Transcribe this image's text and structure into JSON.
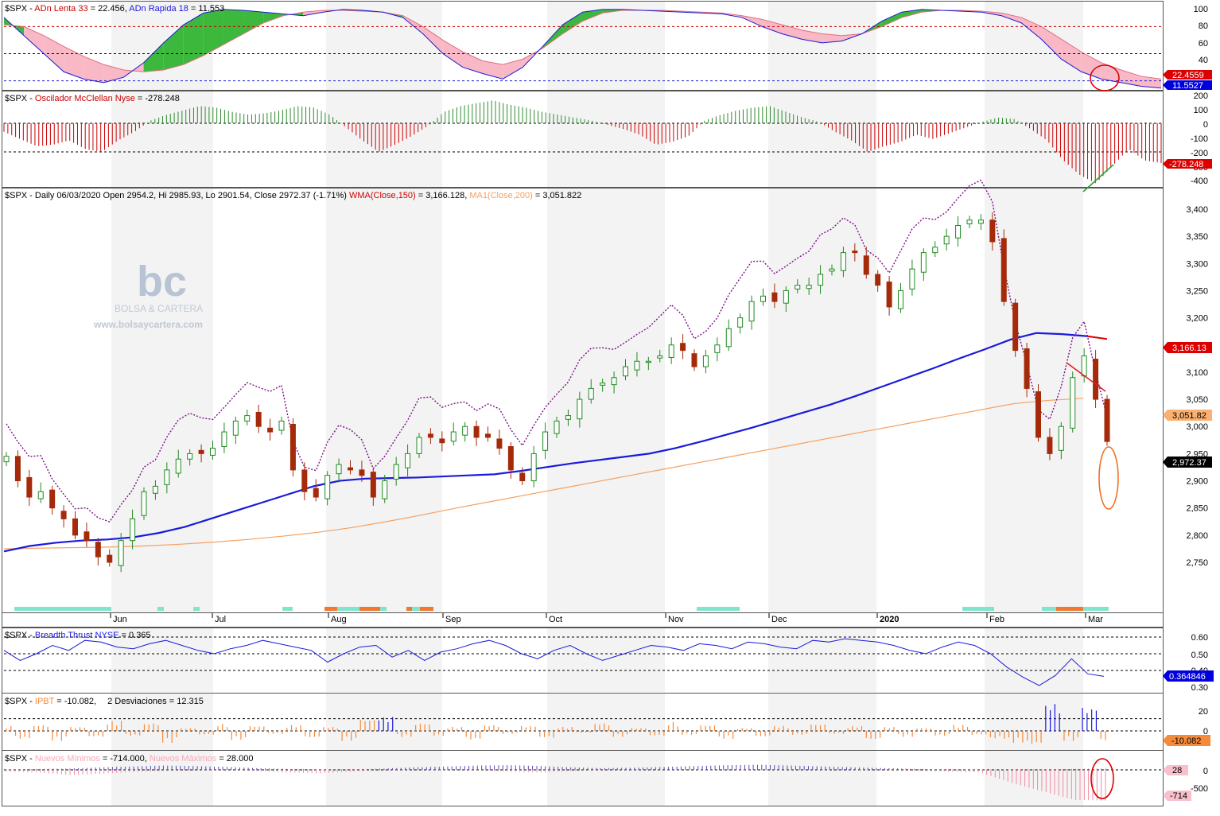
{
  "colors": {
    "bg": "#ffffff",
    "month_shade": "#eeeeee",
    "grid": "#e0e0e0",
    "blue": "#1a1adb",
    "red": "#cc0000",
    "green": "#2e8b2e",
    "orange": "#f58a3a",
    "pink": "#f9b8c6",
    "purple": "#7b0f86",
    "teal": "#7fe5cc",
    "candle_up": "#1f8a1f",
    "candle_down": "#a52a0a"
  },
  "panels": {
    "p1": {
      "title_prefix": "$SPX - ",
      "ind1": "ADn Lenta 33",
      "ind1_val": " = 22.456, ",
      "ind2": "ADn Rapida 18",
      "ind2_val": " = 11.553",
      "ticks": [
        "100",
        "80",
        "60",
        "40",
        "20"
      ],
      "tag1": "22.4559",
      "tag2": "11.5527"
    },
    "p2": {
      "title_prefix": "$SPX - ",
      "ind": "Oscilador McClellan Nyse",
      "ind_val": " = -278.248",
      "ticks": [
        "200",
        "100",
        "0",
        "-100",
        "-200",
        "-300",
        "-400"
      ],
      "tag": "-278.248"
    },
    "p3": {
      "title_prefix": "$SPX - Daily 06/03/2020 Open 2954.2, Hi 2985.93, Lo 2901.54, Close 2972.37 (-1.71%) ",
      "wma": "WMA(Close,150)",
      "wma_val": " = 3,166.128, ",
      "ma": "MA1(Close,200)",
      "ma_val": " = 3,051.822",
      "ticks": [
        "3,400",
        "3,350",
        "3,300",
        "3,250",
        "3,200",
        "3,150",
        "3,100",
        "3,050",
        "3,000",
        "2,950",
        "2,900",
        "2,850",
        "2,800",
        "2,750"
      ],
      "tag_wma": "3,166.13",
      "tag_ma": "3,051.82",
      "tag_close": "2,972.37",
      "months": [
        "Jun",
        "Jul",
        "Aug",
        "Sep",
        "Oct",
        "Nov",
        "Dec",
        "2020",
        "Feb",
        "Mar"
      ]
    },
    "p4": {
      "title_prefix": "$SPX - ",
      "ind": "Breadth Thrust NYSE",
      "ind_val": " = 0.365",
      "ticks": [
        "0.60",
        "0.50",
        "0.40",
        "0.30"
      ],
      "tag": "0.364846"
    },
    "p5": {
      "title_prefix": "$SPX - ",
      "ind": "IPBT",
      "ind_val": " = -10.082,",
      "ind2_text": "2 Desviaciones = 12.315",
      "ticks": [
        "20",
        "0"
      ],
      "tag": "-10.082"
    },
    "p6": {
      "title_prefix": "$SPX - ",
      "ind1": "Nuevos Mínimos",
      "ind1_val": " = -714.000, ",
      "ind2": "Nuevos Máximos",
      "ind2_val": " = 28.000",
      "ticks": [
        "0",
        "-500"
      ],
      "tag1": "28",
      "tag2": "-714"
    }
  },
  "watermark": {
    "logo": "bc",
    "name": "BOLSA & CARTERA",
    "url": "www.bolsaycartera.com"
  },
  "chart_data": [
    {
      "type": "area",
      "title": "$SPX - ADn Lenta 33 = 22.456, ADn Rapida 18 = 11.553",
      "ylim": [
        10,
        105
      ],
      "series": [
        {
          "name": "ADn Lenta 33",
          "values": [
            82,
            80,
            70,
            58,
            47,
            38,
            32,
            30,
            32,
            38,
            48,
            60,
            72,
            84,
            92,
            96,
            98,
            98,
            97,
            96,
            92,
            80,
            65,
            52,
            42,
            38,
            44,
            56,
            72,
            86,
            95,
            98,
            98,
            98,
            97,
            96,
            95,
            92,
            88,
            82,
            76,
            72,
            70,
            72,
            80,
            90,
            96,
            98,
            98,
            97,
            95,
            90,
            80,
            66,
            52,
            40,
            32,
            25,
            22
          ]
        },
        {
          "name": "ADn Rapida 18",
          "values": [
            90,
            70,
            50,
            30,
            22,
            18,
            24,
            40,
            62,
            82,
            95,
            99,
            98,
            96,
            94,
            92,
            96,
            99,
            98,
            96,
            90,
            72,
            50,
            35,
            28,
            22,
            35,
            58,
            82,
            96,
            99,
            99,
            98,
            97,
            96,
            95,
            94,
            90,
            80,
            72,
            66,
            62,
            64,
            72,
            86,
            96,
            99,
            98,
            97,
            96,
            92,
            84,
            66,
            44,
            30,
            22,
            18,
            14,
            12
          ]
        }
      ],
      "levels": [
        80,
        50,
        20
      ]
    },
    {
      "type": "bar",
      "title": "$SPX - Oscilador McClellan Nyse = -278.248",
      "ylim": [
        -430,
        220
      ],
      "series": [
        {
          "name": "Oscilador McClellan Nyse",
          "values": [
            -60,
            -110,
            -160,
            -150,
            -120,
            -180,
            -200,
            -120,
            -60,
            20,
            60,
            90,
            120,
            110,
            80,
            60,
            70,
            90,
            120,
            110,
            60,
            -30,
            -120,
            -200,
            -150,
            -90,
            -20,
            80,
            120,
            140,
            160,
            130,
            110,
            80,
            60,
            40,
            20,
            -10,
            -40,
            -80,
            -150,
            -130,
            -90,
            20,
            60,
            90,
            110,
            120,
            80,
            40,
            10,
            -60,
            -120,
            -200,
            -160,
            -130,
            -80,
            -110,
            -70,
            -30,
            10,
            40,
            30,
            -40,
            -120,
            -260,
            -360,
            -420,
            -300,
            -180,
            -260,
            -278
          ]
        }
      ]
    },
    {
      "type": "line",
      "title": "$SPX - Daily 06/03/2020 Open 2954.2, Hi 2985.93, Lo 2901.54, Close 2972.37 (-1.71%) WMA(Close,150) = 3,166.128, MA1(Close,200) = 3,051.822",
      "ylim": [
        2720,
        3420
      ],
      "series": [
        {
          "name": "Close",
          "values": [
            2945,
            2900,
            2870,
            2880,
            2850,
            2830,
            2800,
            2790,
            2760,
            2750,
            2790,
            2830,
            2880,
            2890,
            2920,
            2940,
            2950,
            2950,
            2960,
            2990,
            3010,
            3020,
            3000,
            2990,
            3010,
            2920,
            2880,
            2870,
            2910,
            2930,
            2920,
            2910,
            2870,
            2900,
            2930,
            2950,
            2980,
            2980,
            2970,
            2990,
            3000,
            2980,
            2980,
            2960,
            2920,
            2900,
            2950,
            2990,
            3010,
            3020,
            3050,
            3070,
            3080,
            3090,
            3110,
            3120,
            3120,
            3130,
            3150,
            3140,
            3110,
            3130,
            3150,
            3180,
            3200,
            3230,
            3240,
            3230,
            3250,
            3260,
            3260,
            3280,
            3290,
            3320,
            3320,
            3280,
            3260,
            3220,
            3250,
            3290,
            3320,
            3330,
            3350,
            3370,
            3380,
            3380,
            3340,
            3230,
            3140,
            3070,
            2980,
            2950,
            3000,
            3090,
            3130,
            3050,
            2972.37
          ]
        },
        {
          "name": "WMA(Close,150)",
          "values": [
            2770,
            2780,
            2786,
            2790,
            2792,
            2796,
            2804,
            2815,
            2830,
            2845,
            2860,
            2875,
            2890,
            2900,
            2904,
            2905,
            2906,
            2908,
            2910,
            2912,
            2918,
            2925,
            2932,
            2938,
            2944,
            2950,
            2960,
            2972,
            2985,
            2998,
            3012,
            3026,
            3040,
            3056,
            3073,
            3090,
            3107,
            3125,
            3142,
            3160,
            3172,
            3170,
            3166.13
          ]
        },
        {
          "name": "MA1(Close,200)",
          "values": [
            2775,
            2776,
            2777,
            2778,
            2780,
            2783,
            2787,
            2792,
            2798,
            2805,
            2814,
            2825,
            2837,
            2850,
            2862,
            2874,
            2886,
            2898,
            2910,
            2922,
            2934,
            2946,
            2958,
            2970,
            2982,
            2994,
            3006,
            3018,
            3030,
            3042,
            3048,
            3051.82
          ]
        }
      ]
    },
    {
      "type": "line",
      "title": "$SPX - Breadth Thrust NYSE = 0.365",
      "ylim": [
        0.28,
        0.62
      ],
      "series": [
        {
          "name": "Breadth Thrust NYSE",
          "values": [
            0.52,
            0.46,
            0.5,
            0.55,
            0.52,
            0.58,
            0.57,
            0.54,
            0.53,
            0.56,
            0.58,
            0.55,
            0.52,
            0.5,
            0.53,
            0.55,
            0.58,
            0.56,
            0.54,
            0.52,
            0.45,
            0.5,
            0.54,
            0.55,
            0.48,
            0.52,
            0.46,
            0.51,
            0.53,
            0.56,
            0.58,
            0.55,
            0.5,
            0.47,
            0.52,
            0.55,
            0.5,
            0.46,
            0.49,
            0.52,
            0.55,
            0.54,
            0.52,
            0.56,
            0.55,
            0.53,
            0.57,
            0.56,
            0.54,
            0.53,
            0.58,
            0.57,
            0.59,
            0.58,
            0.57,
            0.55,
            0.52,
            0.5,
            0.54,
            0.57,
            0.55,
            0.5,
            0.42,
            0.36,
            0.31,
            0.37,
            0.47,
            0.38,
            0.365
          ]
        }
      ],
      "levels": [
        0.6,
        0.5,
        0.4
      ]
    },
    {
      "type": "bar",
      "title": "$SPX - IPBT = -10.082, 2 Desviaciones = 12.315",
      "ylim": [
        -20,
        30
      ],
      "series": [
        {
          "name": "IPBT",
          "values": [
            5,
            -8,
            6,
            -10,
            4,
            -6,
            10,
            -5,
            8,
            -12,
            3,
            -4,
            7,
            -9,
            5,
            -3,
            6,
            -7,
            4,
            -10,
            12,
            14,
            -6,
            8,
            -5,
            4,
            -9,
            6,
            -3,
            5,
            -7,
            4,
            -2,
            8,
            -6,
            3,
            -5,
            9,
            -4,
            6,
            -8,
            3,
            -6,
            5,
            -4,
            7,
            -3,
            5,
            -9,
            4,
            -6,
            3,
            -5,
            6,
            -4,
            -8,
            -12,
            -14,
            28,
            -10,
            24,
            -10.082
          ]
        }
      ],
      "levels": [
        12.315,
        0
      ]
    },
    {
      "type": "bar",
      "title": "$SPX - Nuevos Mínimos = -714.000, Nuevos Máximos = 28.000",
      "ylim": [
        -800,
        150
      ],
      "series": [
        {
          "name": "Nuevos Mínimos",
          "values": [
            -40,
            -60,
            -120,
            -90,
            -50,
            -30,
            -20,
            -10,
            -30,
            -60,
            -80,
            -40,
            -20,
            -10,
            -10,
            -20,
            -40,
            -60,
            -30,
            -10,
            -5,
            -5,
            -10,
            -20,
            -10,
            -5,
            -5,
            -10,
            -20,
            -30,
            -40,
            -60,
            -300,
            -500,
            -700,
            -714
          ]
        },
        {
          "name": "Nuevos Máximos",
          "values": [
            10,
            20,
            30,
            60,
            80,
            100,
            90,
            70,
            40,
            20,
            10,
            10,
            30,
            60,
            80,
            100,
            110,
            90,
            60,
            40,
            50,
            70,
            90,
            110,
            120,
            100,
            80,
            60,
            40,
            20,
            10,
            5,
            5,
            10,
            20,
            28
          ]
        }
      ]
    }
  ]
}
